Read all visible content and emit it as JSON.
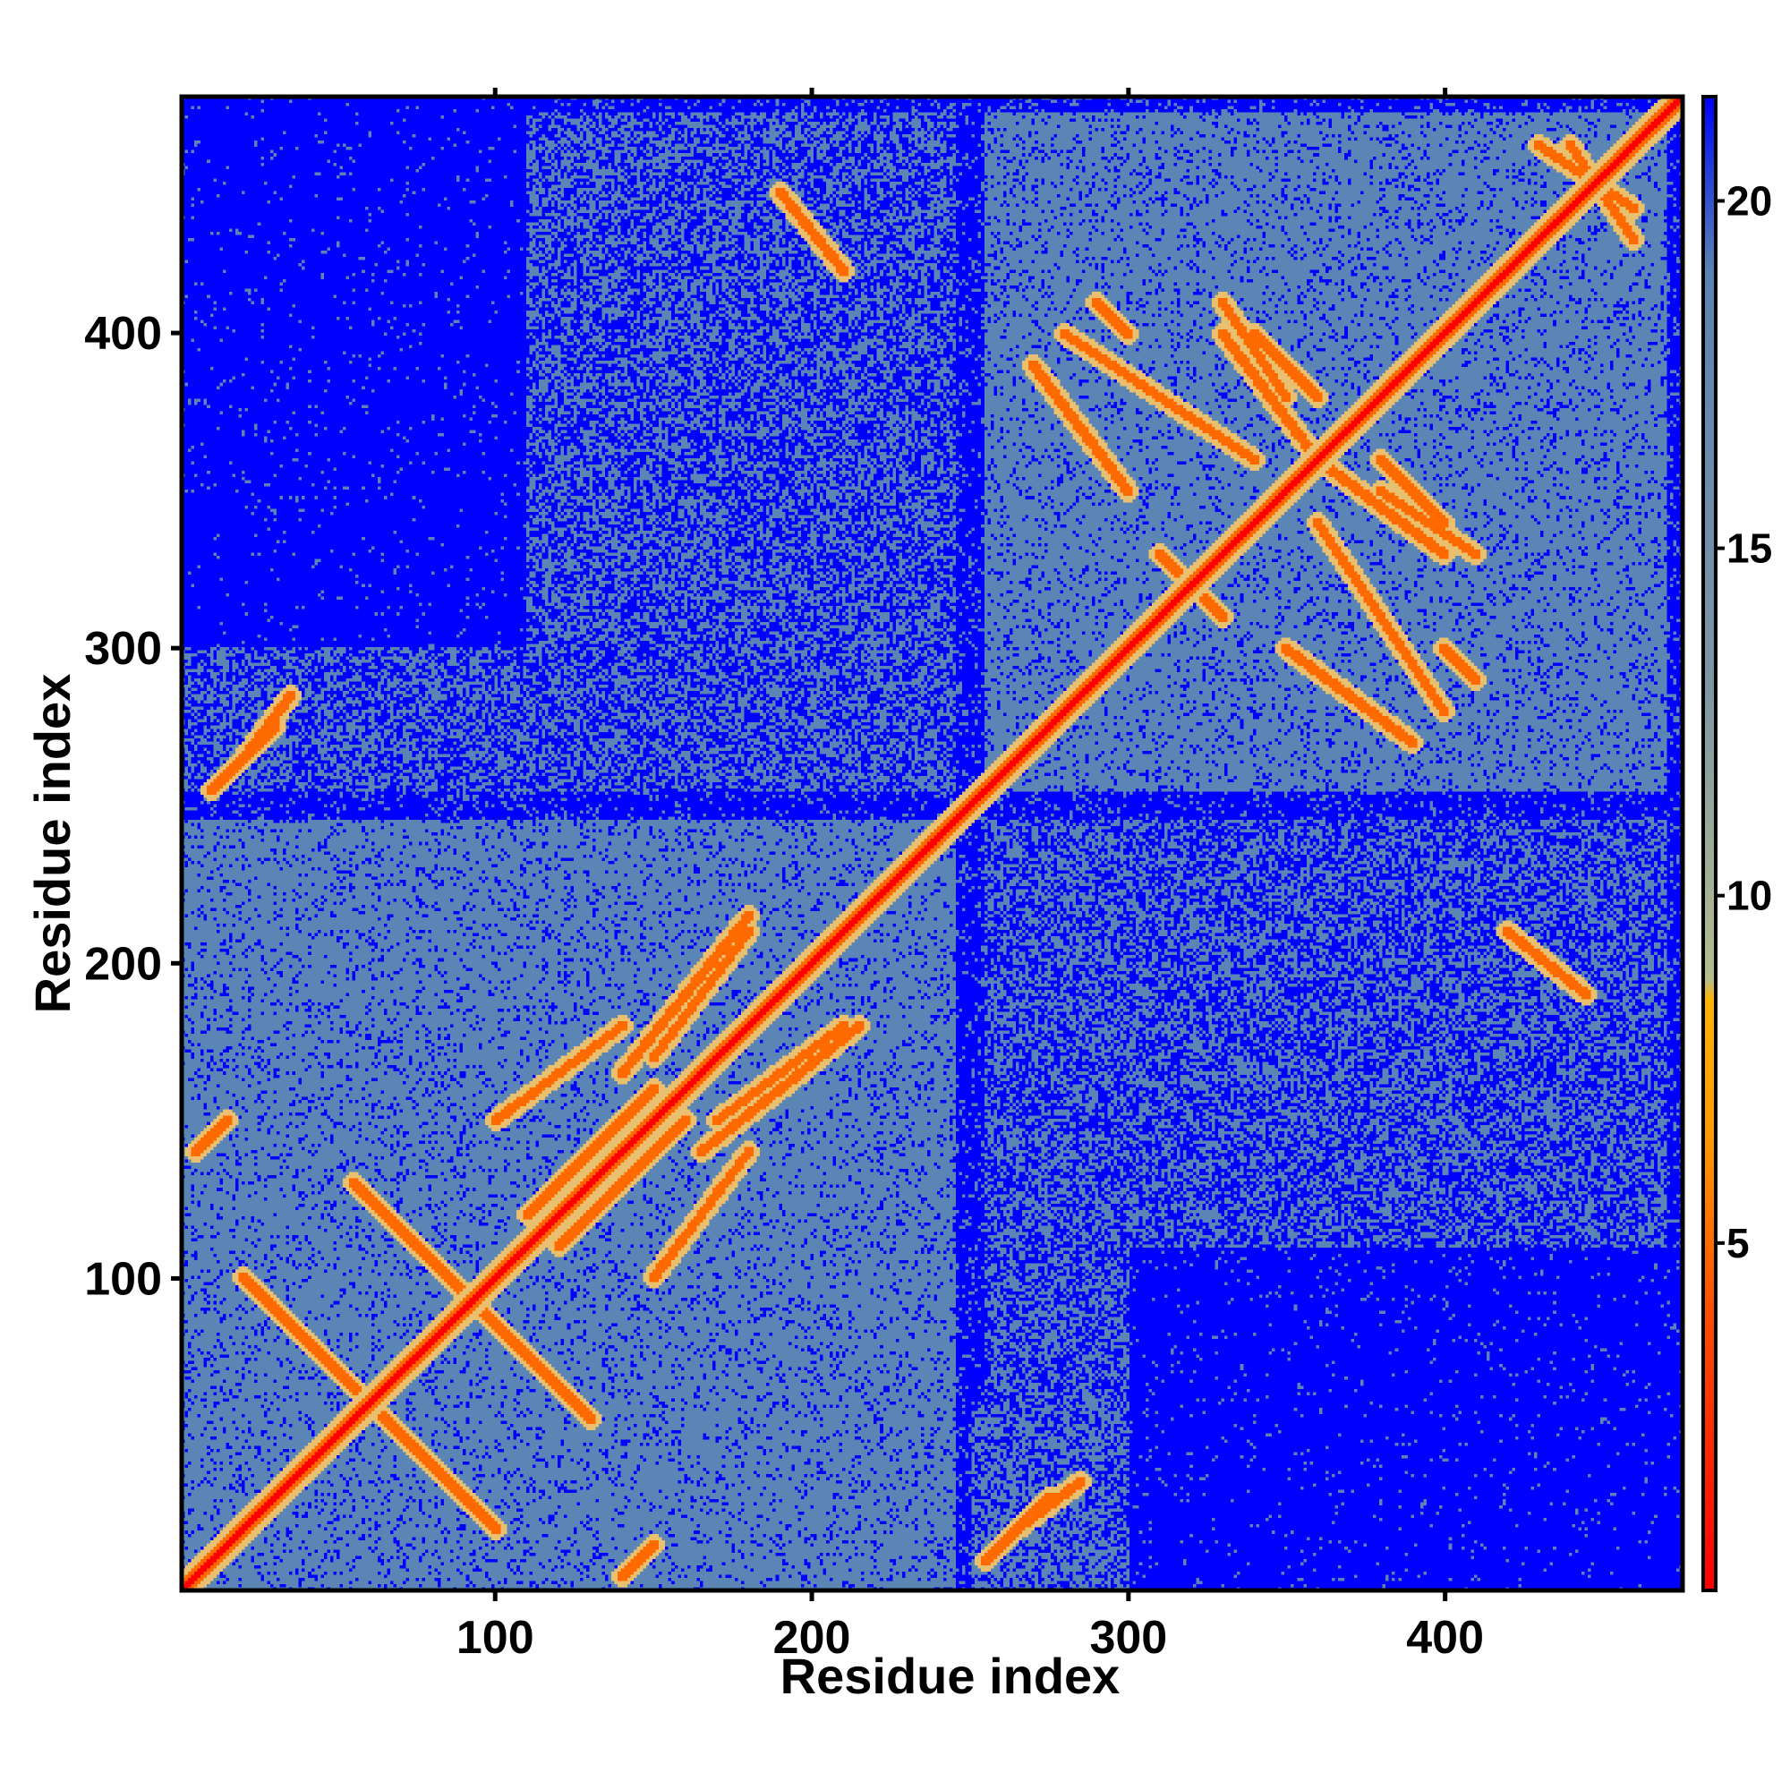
{
  "chart_data": {
    "type": "heatmap",
    "title": "",
    "xlabel": "Residue index",
    "ylabel": "Residue index",
    "xlim": [
      1,
      475
    ],
    "ylim": [
      1,
      475
    ],
    "x_ticks": [
      100,
      200,
      300,
      400
    ],
    "y_ticks": [
      100,
      200,
      300,
      400
    ],
    "colorbar": {
      "ticks": [
        5,
        10,
        15,
        20
      ],
      "range": [
        0,
        21.5
      ],
      "stops": [
        {
          "value": 0,
          "color": "#ff0000"
        },
        {
          "value": 4,
          "color": "#ff4d00"
        },
        {
          "value": 6.5,
          "color": "#ff9900"
        },
        {
          "value": 8.5,
          "color": "#ffb300"
        },
        {
          "value": 8.8,
          "color": "#b4be8c"
        },
        {
          "value": 13,
          "color": "#7d96a5"
        },
        {
          "value": 19,
          "color": "#5a82b4"
        },
        {
          "value": 20.5,
          "color": "#1e3cdc"
        },
        {
          "value": 21.5,
          "color": "#0000ff"
        }
      ]
    },
    "colors": {
      "far": "#0000ff",
      "mid": "#5b85b5",
      "near": "#e8c070",
      "contact": "#ff6a00",
      "diagonal": "#ff0000"
    },
    "domains": [
      {
        "start": 1,
        "end": 245
      },
      {
        "start": 255,
        "end": 470
      }
    ],
    "contact_lines": [
      {
        "x0": 20,
        "y0": 100,
        "x1": 60,
        "y1": 60
      },
      {
        "x0": 55,
        "y0": 130,
        "x1": 90,
        "y1": 95
      },
      {
        "x0": 100,
        "y0": 150,
        "x1": 140,
        "y1": 180
      },
      {
        "x0": 120,
        "y0": 110,
        "x1": 160,
        "y1": 150
      },
      {
        "x0": 165,
        "y0": 140,
        "x1": 215,
        "y1": 180
      },
      {
        "x0": 150,
        "y0": 170,
        "x1": 180,
        "y1": 210
      },
      {
        "x0": 5,
        "y0": 140,
        "x1": 15,
        "y1": 150
      },
      {
        "x0": 280,
        "y0": 400,
        "x1": 340,
        "y1": 360
      },
      {
        "x0": 340,
        "y0": 400,
        "x1": 360,
        "y1": 380
      },
      {
        "x0": 360,
        "y0": 360,
        "x1": 400,
        "y1": 330
      },
      {
        "x0": 380,
        "y0": 350,
        "x1": 410,
        "y1": 330
      },
      {
        "x0": 310,
        "y0": 330,
        "x1": 330,
        "y1": 310
      },
      {
        "x0": 350,
        "y0": 300,
        "x1": 390,
        "y1": 270
      },
      {
        "x0": 400,
        "y0": 300,
        "x1": 410,
        "y1": 290
      },
      {
        "x0": 430,
        "y0": 460,
        "x1": 460,
        "y1": 440
      },
      {
        "x0": 420,
        "y0": 210,
        "x1": 445,
        "y1": 190
      },
      {
        "x0": 10,
        "y0": 255,
        "x1": 30,
        "y1": 275
      },
      {
        "x0": 265,
        "y0": 20,
        "x1": 285,
        "y1": 35
      }
    ]
  }
}
